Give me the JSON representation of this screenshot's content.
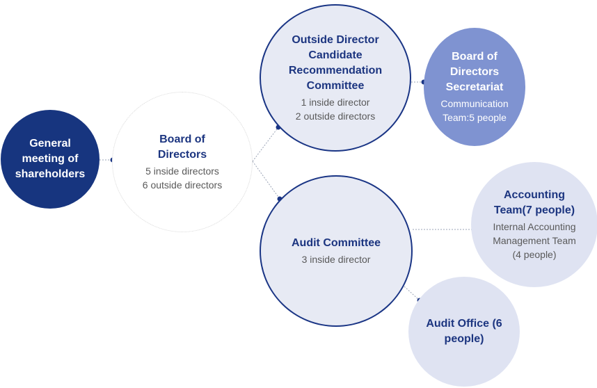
{
  "nodes": {
    "general_meeting": {
      "title": "General meeting of shareholders"
    },
    "board": {
      "title": "Board of Directors",
      "lines": [
        "5 inside directors",
        "6 outside directors"
      ]
    },
    "odc": {
      "title": "Outside Director Candidate Recommendation Committee",
      "lines": [
        "1 inside director",
        "2 outside directors"
      ]
    },
    "secretariat": {
      "title": "Board of Directors Secretariat",
      "lines": [
        "Communication Team:5 people"
      ]
    },
    "audit_committee": {
      "title": "Audit Committee",
      "lines": [
        "3 inside director"
      ]
    },
    "accounting": {
      "title": "Accounting Team(7 people)",
      "lines": [
        "Internal Accounting Management Team",
        "(4 people)"
      ]
    },
    "audit_office": {
      "title": "Audit Office (6 people)"
    }
  },
  "colors": {
    "navy": "#17357f",
    "light_fill": "#e7eaf4",
    "mid_fill": "#7f93d1",
    "pale_fill": "#dfe3f2"
  }
}
